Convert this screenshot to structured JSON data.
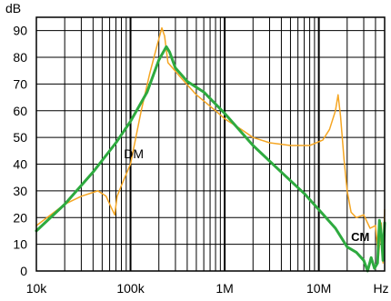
{
  "chart_data": {
    "type": "line",
    "title": "",
    "ylabel": "dB",
    "xlabel": "Hz",
    "x_scale": "log",
    "xlim": [
      10000,
      50000000
    ],
    "ylim": [
      0,
      95
    ],
    "x_ticks": [
      10000,
      100000,
      1000000,
      10000000
    ],
    "x_tick_labels": [
      "10k",
      "100k",
      "1M",
      "10M"
    ],
    "y_ticks": [
      0,
      10,
      20,
      30,
      40,
      50,
      60,
      70,
      80,
      90
    ],
    "y_tick_labels": [
      "0",
      "10",
      "20",
      "30",
      "40",
      "50",
      "60",
      "70",
      "80",
      "90"
    ],
    "grid": true,
    "legend": "none",
    "series": [
      {
        "name": "DM",
        "color": "#f5a623",
        "label_at": [
          85000,
          44
        ],
        "x": [
          10000,
          20000,
          30000,
          45000,
          55000,
          62000,
          68000,
          72000,
          80000,
          100000,
          130000,
          160000,
          190000,
          215000,
          230000,
          250000,
          280000,
          350000,
          500000,
          800000,
          1000000,
          1500000,
          2000000,
          3000000,
          5000000,
          8000000,
          11000000,
          13000000,
          15000000,
          16000000,
          17000000,
          18500000,
          20000000,
          22000000,
          25000000,
          30000000,
          35000000,
          40000000,
          43000000,
          46000000,
          48000000,
          50000000
        ],
        "y": [
          17,
          25,
          28,
          30,
          28,
          24,
          21,
          28,
          32,
          40,
          60,
          74,
          84,
          91,
          88,
          78,
          76,
          72,
          66,
          60,
          57,
          53,
          50,
          48,
          47,
          47,
          49,
          53,
          60,
          66,
          58,
          42,
          30,
          22,
          20,
          21,
          16,
          17,
          5,
          18,
          3,
          23
        ]
      },
      {
        "name": "CM",
        "color": "#2eaa3f",
        "label_at": [
          22000000,
          13
        ],
        "x": [
          10000,
          20000,
          40000,
          70000,
          100000,
          150000,
          200000,
          240000,
          260000,
          300000,
          400000,
          600000,
          1000000,
          2000000,
          4000000,
          7000000,
          10000000,
          15000000,
          20000000,
          25000000,
          30000000,
          33000000,
          36000000,
          39000000,
          42000000,
          44000000,
          46000000,
          48000000,
          50000000
        ],
        "y": [
          15,
          25,
          37,
          48,
          56,
          67,
          79,
          84,
          82,
          76,
          71,
          67,
          59,
          47,
          37,
          29,
          23,
          16,
          9,
          7,
          4,
          0,
          5,
          1,
          3,
          19,
          14,
          4,
          18
        ]
      }
    ]
  }
}
